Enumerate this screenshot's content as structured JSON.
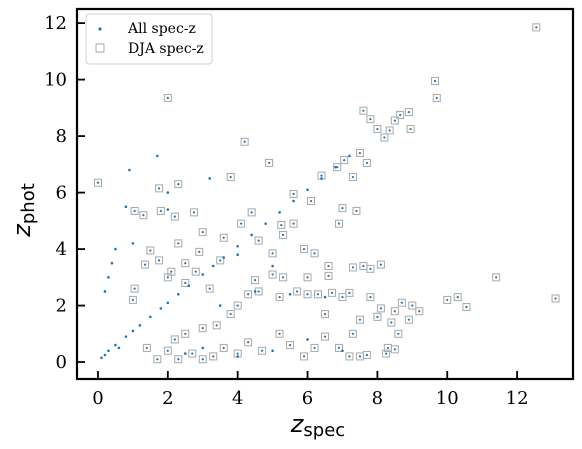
{
  "chart_data": {
    "type": "scatter",
    "xlabel": "z",
    "xlabel_sub": "spec",
    "ylabel": "z",
    "ylabel_sub": "phot",
    "xlim": [
      -0.6,
      13.6
    ],
    "ylim": [
      -0.6,
      12.5
    ],
    "xticks": [
      0,
      2,
      4,
      6,
      8,
      10,
      12
    ],
    "yticks": [
      0,
      2,
      4,
      6,
      8,
      10,
      12
    ],
    "legend_position": "top-left",
    "colors": {
      "all": "#1f77b4",
      "dja_edge": "#a9a9a9"
    },
    "series": [
      {
        "name": "All spec-z",
        "marker": "dot",
        "color": "#1f77b4",
        "points": [
          [
            0.1,
            0.15
          ],
          [
            0.2,
            0.25
          ],
          [
            0.3,
            0.4
          ],
          [
            0.5,
            0.6
          ],
          [
            0.6,
            0.5
          ],
          [
            0.8,
            0.9
          ],
          [
            1.0,
            1.1
          ],
          [
            1.2,
            1.3
          ],
          [
            1.5,
            1.6
          ],
          [
            1.8,
            1.9
          ],
          [
            2.0,
            2.1
          ],
          [
            2.3,
            2.4
          ],
          [
            2.6,
            2.7
          ],
          [
            3.0,
            3.1
          ],
          [
            3.3,
            3.4
          ],
          [
            3.6,
            3.7
          ],
          [
            4.0,
            4.1
          ],
          [
            4.4,
            4.5
          ],
          [
            4.8,
            4.9
          ],
          [
            5.2,
            5.3
          ],
          [
            5.6,
            5.7
          ],
          [
            6.0,
            6.1
          ],
          [
            6.4,
            6.5
          ],
          [
            6.8,
            6.9
          ],
          [
            7.2,
            7.3
          ],
          [
            0.2,
            2.5
          ],
          [
            0.3,
            3.0
          ],
          [
            0.5,
            4.0
          ],
          [
            0.8,
            5.5
          ],
          [
            0.9,
            6.8
          ],
          [
            1.7,
            7.3
          ],
          [
            2.0,
            6.0
          ],
          [
            3.2,
            6.5
          ],
          [
            0.4,
            3.5
          ],
          [
            1.0,
            4.2
          ],
          [
            2.5,
            0.3
          ],
          [
            3.0,
            0.5
          ],
          [
            4.0,
            0.2
          ],
          [
            5.0,
            0.4
          ],
          [
            6.0,
            0.8
          ],
          [
            3.5,
            2.0
          ],
          [
            4.5,
            2.5
          ],
          [
            5.5,
            2.4
          ],
          [
            6.5,
            2.3
          ],
          [
            7.0,
            0.4
          ],
          [
            2.0,
            5.4
          ],
          [
            4.0,
            3.8
          ],
          [
            5.0,
            3.4
          ]
        ]
      },
      {
        "name": "DJA spec-z",
        "marker": "open-square",
        "color": "#a9a9a9",
        "points": [
          [
            0.0,
            6.35
          ],
          [
            2.0,
            9.35
          ],
          [
            4.2,
            7.8
          ],
          [
            4.9,
            7.05
          ],
          [
            3.8,
            6.55
          ],
          [
            1.75,
            6.15
          ],
          [
            2.3,
            6.3
          ],
          [
            1.05,
            5.35
          ],
          [
            1.3,
            5.2
          ],
          [
            1.8,
            5.35
          ],
          [
            2.2,
            5.15
          ],
          [
            2.75,
            5.3
          ],
          [
            1.5,
            3.95
          ],
          [
            1.35,
            3.45
          ],
          [
            1.05,
            2.6
          ],
          [
            1.0,
            2.2
          ],
          [
            2.0,
            3.0
          ],
          [
            2.1,
            3.2
          ],
          [
            7.6,
            8.9
          ],
          [
            7.8,
            8.6
          ],
          [
            8.0,
            8.25
          ],
          [
            8.2,
            7.95
          ],
          [
            8.35,
            8.2
          ],
          [
            8.5,
            8.55
          ],
          [
            8.65,
            8.75
          ],
          [
            8.9,
            8.85
          ],
          [
            8.95,
            8.25
          ],
          [
            9.65,
            9.95
          ],
          [
            9.7,
            9.35
          ],
          [
            12.55,
            11.85
          ],
          [
            7.5,
            7.4
          ],
          [
            7.7,
            7.05
          ],
          [
            7.3,
            6.55
          ],
          [
            7.0,
            5.45
          ],
          [
            7.4,
            5.35
          ],
          [
            6.9,
            4.9
          ],
          [
            7.3,
            3.35
          ],
          [
            7.6,
            3.4
          ],
          [
            7.8,
            3.3
          ],
          [
            8.1,
            3.45
          ],
          [
            6.2,
            3.85
          ],
          [
            6.6,
            3.4
          ],
          [
            5.9,
            4.0
          ],
          [
            5.0,
            3.85
          ],
          [
            5.3,
            4.5
          ],
          [
            5.6,
            4.9
          ],
          [
            6.3,
            2.4
          ],
          [
            6.7,
            2.45
          ],
          [
            7.0,
            2.3
          ],
          [
            7.2,
            2.45
          ],
          [
            7.8,
            2.3
          ],
          [
            8.1,
            1.9
          ],
          [
            8.4,
            1.4
          ],
          [
            8.7,
            2.1
          ],
          [
            8.9,
            1.5
          ],
          [
            9.0,
            2.0
          ],
          [
            8.6,
            1.0
          ],
          [
            8.3,
            0.5
          ],
          [
            8.5,
            1.8
          ],
          [
            9.2,
            1.8
          ],
          [
            10.0,
            2.2
          ],
          [
            10.3,
            2.3
          ],
          [
            10.55,
            1.95
          ],
          [
            11.4,
            3.0
          ],
          [
            13.1,
            2.25
          ],
          [
            8.25,
            0.3
          ],
          [
            8.5,
            0.45
          ],
          [
            7.7,
            0.25
          ],
          [
            7.5,
            0.2
          ],
          [
            7.2,
            0.2
          ],
          [
            6.9,
            0.5
          ],
          [
            6.5,
            0.9
          ],
          [
            6.2,
            0.5
          ],
          [
            5.9,
            0.2
          ],
          [
            5.5,
            0.6
          ],
          [
            5.2,
            1.0
          ],
          [
            4.7,
            0.4
          ],
          [
            4.3,
            0.7
          ],
          [
            4.0,
            0.3
          ],
          [
            3.6,
            0.5
          ],
          [
            3.3,
            0.2
          ],
          [
            3.0,
            0.1
          ],
          [
            2.7,
            0.3
          ],
          [
            2.3,
            0.1
          ],
          [
            2.0,
            0.4
          ],
          [
            1.7,
            0.1
          ],
          [
            1.4,
            0.5
          ],
          [
            6.5,
            1.7
          ],
          [
            7.5,
            1.5
          ],
          [
            7.3,
            1.0
          ],
          [
            8.0,
            1.6
          ],
          [
            6.0,
            2.4
          ],
          [
            5.7,
            2.5
          ],
          [
            5.2,
            2.3
          ],
          [
            4.6,
            2.5
          ],
          [
            4.3,
            2.4
          ],
          [
            4.0,
            2.0
          ],
          [
            3.8,
            1.7
          ],
          [
            3.4,
            1.3
          ],
          [
            3.0,
            1.2
          ],
          [
            2.5,
            1.0
          ],
          [
            2.2,
            0.8
          ],
          [
            6.6,
            3.05
          ],
          [
            6.0,
            3.0
          ],
          [
            5.3,
            3.0
          ],
          [
            5.0,
            3.1
          ],
          [
            4.5,
            2.9
          ],
          [
            3.2,
            2.6
          ],
          [
            2.8,
            3.2
          ],
          [
            2.5,
            2.8
          ],
          [
            3.5,
            3.6
          ],
          [
            3.0,
            4.6
          ],
          [
            4.4,
            5.3
          ],
          [
            5.6,
            5.95
          ],
          [
            6.1,
            5.7
          ],
          [
            6.4,
            6.6
          ],
          [
            6.85,
            6.9
          ],
          [
            7.05,
            7.15
          ],
          [
            5.25,
            4.85
          ],
          [
            4.6,
            4.3
          ],
          [
            2.3,
            4.2
          ],
          [
            1.75,
            3.6
          ],
          [
            2.5,
            3.5
          ],
          [
            2.9,
            3.9
          ],
          [
            3.6,
            4.4
          ],
          [
            4.1,
            4.9
          ]
        ]
      }
    ]
  }
}
